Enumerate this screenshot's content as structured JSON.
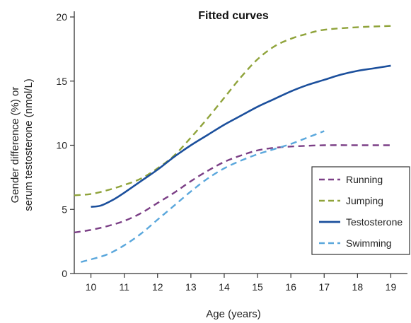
{
  "chart_data": {
    "type": "line",
    "title": "Fitted curves",
    "xlabel": "Age (years)",
    "ylabel_line1": "Gender difference (%) or",
    "ylabel_line2": "serum testosterone (nmol/L)",
    "xlim": [
      9.5,
      19.5
    ],
    "ylim": [
      0,
      20
    ],
    "x_ticks": [
      10,
      11,
      12,
      13,
      14,
      15,
      16,
      17,
      18,
      19
    ],
    "y_ticks": [
      0,
      5,
      10,
      15,
      20
    ],
    "grid": false,
    "legend_position": "bottom-right",
    "series": [
      {
        "name": "Running",
        "color": "#7b3f86",
        "style": "dashed",
        "points": [
          [
            9.5,
            3.2
          ],
          [
            10,
            3.4
          ],
          [
            10.5,
            3.7
          ],
          [
            11,
            4.1
          ],
          [
            11.5,
            4.7
          ],
          [
            12,
            5.5
          ],
          [
            12.5,
            6.3
          ],
          [
            13,
            7.2
          ],
          [
            13.5,
            8.0
          ],
          [
            14,
            8.7
          ],
          [
            14.5,
            9.2
          ],
          [
            15,
            9.6
          ],
          [
            15.5,
            9.8
          ],
          [
            16,
            9.9
          ],
          [
            17,
            10.0
          ],
          [
            18,
            10.0
          ],
          [
            19,
            10.0
          ]
        ]
      },
      {
        "name": "Jumping",
        "color": "#8fa33a",
        "style": "dashed",
        "points": [
          [
            9.5,
            6.1
          ],
          [
            10,
            6.2
          ],
          [
            10.5,
            6.5
          ],
          [
            11,
            6.9
          ],
          [
            11.5,
            7.4
          ],
          [
            12,
            8.2
          ],
          [
            12.5,
            9.2
          ],
          [
            13,
            10.6
          ],
          [
            13.5,
            12.1
          ],
          [
            14,
            13.7
          ],
          [
            14.5,
            15.3
          ],
          [
            15,
            16.7
          ],
          [
            15.5,
            17.7
          ],
          [
            16,
            18.3
          ],
          [
            16.5,
            18.7
          ],
          [
            17,
            19.0
          ],
          [
            18,
            19.2
          ],
          [
            19,
            19.3
          ]
        ]
      },
      {
        "name": "Testosterone",
        "color": "#1b4f9c",
        "style": "solid",
        "points": [
          [
            10,
            5.2
          ],
          [
            10.3,
            5.3
          ],
          [
            10.7,
            5.8
          ],
          [
            11,
            6.3
          ],
          [
            11.5,
            7.2
          ],
          [
            12,
            8.1
          ],
          [
            12.5,
            9.1
          ],
          [
            13,
            10.0
          ],
          [
            13.5,
            10.8
          ],
          [
            14,
            11.6
          ],
          [
            14.5,
            12.3
          ],
          [
            15,
            13.0
          ],
          [
            15.5,
            13.6
          ],
          [
            16,
            14.2
          ],
          [
            16.5,
            14.7
          ],
          [
            17,
            15.1
          ],
          [
            17.5,
            15.5
          ],
          [
            18,
            15.8
          ],
          [
            18.5,
            16.0
          ],
          [
            19,
            16.2
          ]
        ]
      },
      {
        "name": "Swimming",
        "color": "#5aa7dc",
        "style": "dashed",
        "points": [
          [
            9.7,
            0.9
          ],
          [
            10,
            1.1
          ],
          [
            10.5,
            1.5
          ],
          [
            11,
            2.2
          ],
          [
            11.5,
            3.1
          ],
          [
            12,
            4.2
          ],
          [
            12.5,
            5.3
          ],
          [
            13,
            6.4
          ],
          [
            13.5,
            7.4
          ],
          [
            14,
            8.2
          ],
          [
            14.5,
            8.8
          ],
          [
            15,
            9.3
          ],
          [
            15.5,
            9.7
          ],
          [
            16,
            10.1
          ],
          [
            16.5,
            10.6
          ],
          [
            17,
            11.1
          ]
        ]
      }
    ]
  }
}
